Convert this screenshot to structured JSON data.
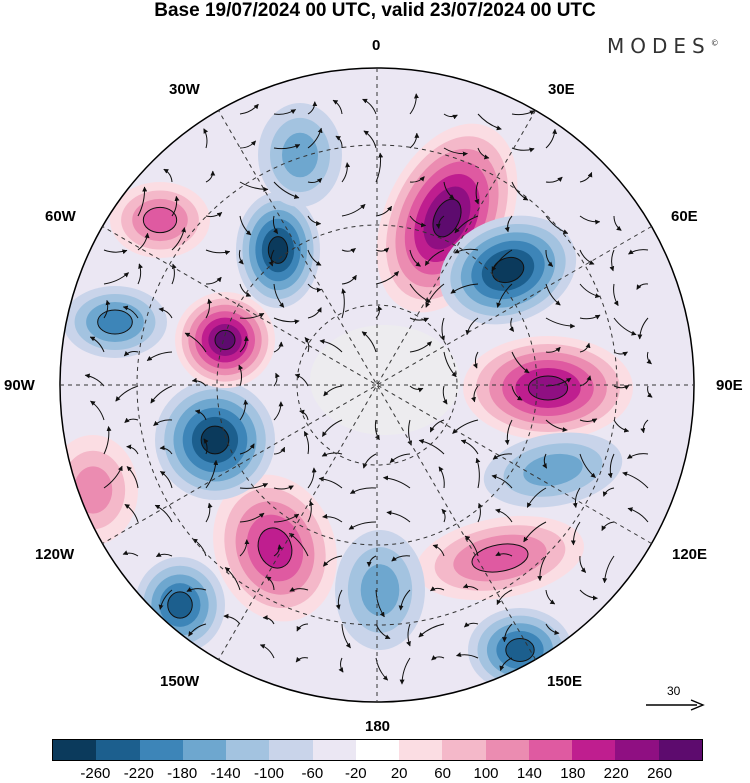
{
  "title": "Base 19/07/2024 00 UTC, valid 23/07/2024 00 UTC",
  "brand": "MODES",
  "brand_mark": "©",
  "longitude_labels": {
    "lon_0": "0",
    "lon_30e": "30E",
    "lon_60e": "60E",
    "lon_90e": "90E",
    "lon_120e": "120E",
    "lon_150e": "150E",
    "lon_180": "180",
    "lon_150w": "150W",
    "lon_120w": "120W",
    "lon_90w": "90W",
    "lon_60w": "60W",
    "lon_30w": "30W"
  },
  "reference_vector": {
    "value": "30",
    "icon": "arrow-right-icon"
  },
  "colorbar": {
    "colors": [
      "#0b3a5c",
      "#1c5f8e",
      "#3d85b8",
      "#6ea7cf",
      "#a3c3e0",
      "#c9d4ea",
      "#ebe7f3",
      "#ffffff",
      "#fbdde3",
      "#f4b8c9",
      "#eb8cb1",
      "#df5aa1",
      "#bf1e8f",
      "#8f0f82",
      "#5d0b6e"
    ],
    "ticks": [
      "-260",
      "-220",
      "-180",
      "-140",
      "-100",
      "-60",
      "-20",
      "20",
      "60",
      "100",
      "140",
      "180",
      "220",
      "260"
    ]
  },
  "anomaly_centres": [
    {
      "kind": "positive",
      "level": 260,
      "near": "30E-60E"
    },
    {
      "kind": "negative",
      "level": -260,
      "near": "60E"
    },
    {
      "kind": "positive",
      "level": 220,
      "near": "90E"
    },
    {
      "kind": "negative",
      "level": -100,
      "near": "100E-120E"
    },
    {
      "kind": "positive",
      "level": 140,
      "near": "120E"
    },
    {
      "kind": "negative",
      "level": -180,
      "near": "150E"
    },
    {
      "kind": "negative",
      "level": -100,
      "near": "180"
    },
    {
      "kind": "positive",
      "level": 180,
      "near": "150W"
    },
    {
      "kind": "negative",
      "level": -180,
      "near": "150W-120W"
    },
    {
      "kind": "negative",
      "level": -260,
      "near": "100W"
    },
    {
      "kind": "positive",
      "level": 260,
      "near": "75W"
    },
    {
      "kind": "negative",
      "level": -140,
      "near": "80W"
    },
    {
      "kind": "positive",
      "level": 140,
      "near": "50W"
    },
    {
      "kind": "negative",
      "level": -220,
      "near": "40W"
    },
    {
      "kind": "negative",
      "level": -100,
      "near": "15W"
    },
    {
      "kind": "positive",
      "level": 100,
      "near": "105W"
    }
  ]
}
